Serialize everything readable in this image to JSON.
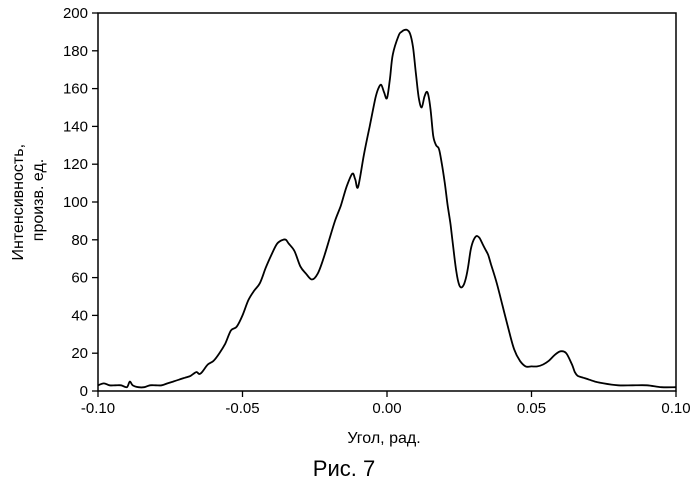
{
  "chart_data": {
    "type": "line",
    "title": "",
    "caption": "Рис. 7",
    "xlabel": "Угол, рад.",
    "ylabel_lines": [
      "Интенсивность,",
      "произв. ед."
    ],
    "xlim": [
      -0.1,
      0.1
    ],
    "ylim": [
      0,
      200
    ],
    "x_ticks": [
      -0.1,
      -0.05,
      0.0,
      0.05,
      0.1
    ],
    "x_tick_labels": [
      "-0.10",
      "-0.05",
      "0.00",
      "0.05",
      "0.10"
    ],
    "y_ticks": [
      0,
      20,
      40,
      60,
      80,
      100,
      120,
      140,
      160,
      180,
      200
    ],
    "y_tick_labels": [
      "0",
      "20",
      "40",
      "60",
      "80",
      "100",
      "120",
      "140",
      "160",
      "180",
      "200"
    ],
    "grid": false,
    "legend": "none",
    "line_color": "#000000",
    "series": [
      {
        "x": [
          -0.1,
          -0.098,
          -0.096,
          -0.094,
          -0.092,
          -0.09,
          -0.089,
          -0.088,
          -0.086,
          -0.084,
          -0.082,
          -0.08,
          -0.078,
          -0.076,
          -0.074,
          -0.072,
          -0.07,
          -0.068,
          -0.066,
          -0.065,
          -0.064,
          -0.062,
          -0.06,
          -0.058,
          -0.056,
          -0.054,
          -0.052,
          -0.05,
          -0.048,
          -0.046,
          -0.044,
          -0.042,
          -0.04,
          -0.038,
          -0.036,
          -0.035,
          -0.034,
          -0.032,
          -0.03,
          -0.028,
          -0.026,
          -0.024,
          -0.022,
          -0.02,
          -0.018,
          -0.016,
          -0.014,
          -0.012,
          -0.011,
          -0.01,
          -0.008,
          -0.006,
          -0.004,
          -0.003,
          -0.002,
          -0.001,
          0.0,
          0.001,
          0.002,
          0.004,
          0.005,
          0.006,
          0.007,
          0.008,
          0.009,
          0.01,
          0.011,
          0.012,
          0.013,
          0.014,
          0.015,
          0.016,
          0.017,
          0.018,
          0.019,
          0.02,
          0.021,
          0.022,
          0.023,
          0.024,
          0.025,
          0.026,
          0.027,
          0.028,
          0.029,
          0.03,
          0.031,
          0.032,
          0.033,
          0.034,
          0.035,
          0.036,
          0.038,
          0.04,
          0.042,
          0.044,
          0.046,
          0.048,
          0.05,
          0.052,
          0.054,
          0.056,
          0.058,
          0.06,
          0.062,
          0.064,
          0.065,
          0.066,
          0.068,
          0.07,
          0.072,
          0.075,
          0.08,
          0.085,
          0.09,
          0.095,
          0.1
        ],
        "y": [
          3,
          4,
          3,
          3,
          3,
          2,
          5,
          3,
          2,
          2,
          3,
          3,
          3,
          4,
          5,
          6,
          7,
          8,
          10,
          9,
          10,
          14,
          16,
          20,
          25,
          32,
          34,
          40,
          48,
          53,
          57,
          65,
          72,
          78,
          80,
          80,
          78,
          74,
          66,
          62,
          59,
          62,
          70,
          80,
          90,
          98,
          108,
          115,
          112,
          108,
          125,
          140,
          155,
          160,
          162,
          158,
          155,
          165,
          178,
          188,
          190,
          191,
          191,
          189,
          182,
          168,
          155,
          150,
          156,
          158,
          150,
          135,
          130,
          128,
          120,
          110,
          98,
          88,
          75,
          63,
          56,
          55,
          58,
          65,
          75,
          80,
          82,
          81,
          78,
          75,
          72,
          67,
          57,
          45,
          33,
          22,
          16,
          13,
          13,
          13,
          14,
          16,
          19,
          21,
          20,
          14,
          10,
          8,
          7,
          6,
          5,
          4,
          3,
          3,
          3,
          2,
          2
        ]
      }
    ]
  }
}
